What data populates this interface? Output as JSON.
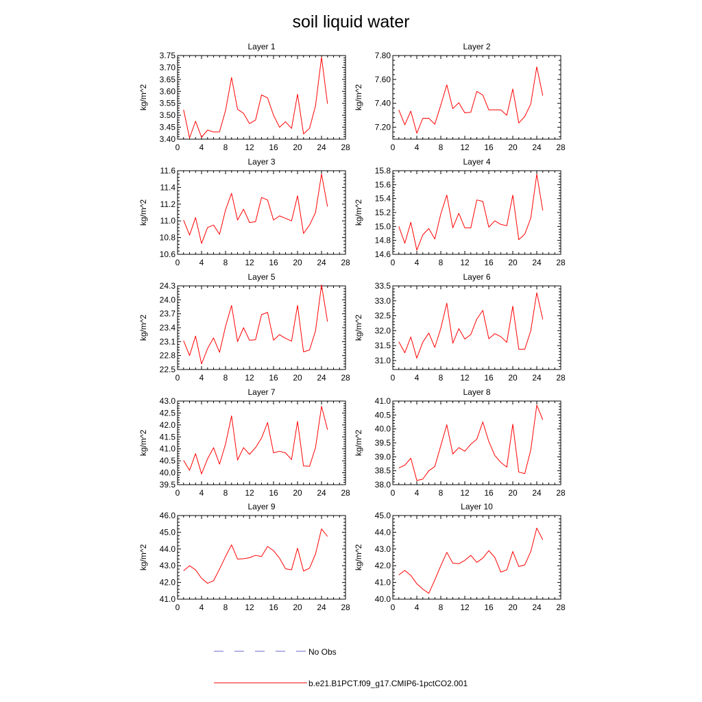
{
  "title": "soil liquid water",
  "legend": {
    "no_obs_label": "No Obs",
    "no_obs_color": "#6666cc",
    "model_label": "b.e21.B1PCT.f09_g17.CMIP6-1pctCO2.001",
    "model_color": "#ff0000"
  },
  "chart_data": [
    {
      "type": "line",
      "title": "Layer 1",
      "ylabel": "kg/m^2",
      "xlim": [
        0,
        28
      ],
      "xticks": [
        "0",
        "4",
        "8",
        "12",
        "16",
        "20",
        "24",
        "28"
      ],
      "ylim": [
        3.4,
        3.75
      ],
      "yticks": [
        "3.40",
        "3.45",
        "3.50",
        "3.55",
        "3.60",
        "3.65",
        "3.70",
        "3.75"
      ],
      "x": [
        1,
        2,
        3,
        4,
        5,
        6,
        7,
        8,
        9,
        10,
        11,
        12,
        13,
        14,
        15,
        16,
        17,
        18,
        19,
        20,
        21,
        22,
        23,
        24,
        25
      ],
      "series": [
        {
          "name": "b.e21.B1PCT.f09_g17.CMIP6-1pctCO2.001",
          "values": [
            3.523,
            3.405,
            3.475,
            3.408,
            3.438,
            3.43,
            3.431,
            3.52,
            3.658,
            3.525,
            3.508,
            3.465,
            3.48,
            3.585,
            3.573,
            3.5,
            3.45,
            3.473,
            3.445,
            3.588,
            3.422,
            3.445,
            3.54,
            3.743,
            3.548
          ]
        }
      ]
    },
    {
      "type": "line",
      "title": "Layer 2",
      "ylabel": "kg/m^2",
      "xlim": [
        0,
        28
      ],
      "xticks": [
        "0",
        "4",
        "8",
        "12",
        "16",
        "20",
        "24",
        "28"
      ],
      "ylim": [
        7.1,
        7.8
      ],
      "yticks": [
        "7.20",
        "7.40",
        "7.60",
        "7.80"
      ],
      "x": [
        1,
        2,
        3,
        4,
        5,
        6,
        7,
        8,
        9,
        10,
        11,
        12,
        13,
        14,
        15,
        16,
        17,
        18,
        19,
        20,
        21,
        22,
        23,
        24,
        25
      ],
      "series": [
        {
          "name": "b.e21.B1PCT.f09_g17.CMIP6-1pctCO2.001",
          "values": [
            7.345,
            7.22,
            7.335,
            7.15,
            7.275,
            7.275,
            7.225,
            7.385,
            7.555,
            7.355,
            7.405,
            7.32,
            7.325,
            7.5,
            7.47,
            7.345,
            7.345,
            7.345,
            7.3,
            7.52,
            7.235,
            7.29,
            7.395,
            7.705,
            7.465
          ]
        }
      ]
    },
    {
      "type": "line",
      "title": "Layer 3",
      "ylabel": "kg/m^2",
      "xlim": [
        0,
        28
      ],
      "xticks": [
        "0",
        "4",
        "8",
        "12",
        "16",
        "20",
        "24",
        "28"
      ],
      "ylim": [
        10.6,
        11.6
      ],
      "yticks": [
        "10.6",
        "10.8",
        "11.0",
        "11.2",
        "11.4",
        "11.6"
      ],
      "x": [
        1,
        2,
        3,
        4,
        5,
        6,
        7,
        8,
        9,
        10,
        11,
        12,
        13,
        14,
        15,
        16,
        17,
        18,
        19,
        20,
        21,
        22,
        23,
        24,
        25
      ],
      "series": [
        {
          "name": "b.e21.B1PCT.f09_g17.CMIP6-1pctCO2.001",
          "values": [
            11.01,
            10.83,
            11.04,
            10.73,
            10.92,
            10.95,
            10.84,
            11.13,
            11.33,
            11.01,
            11.14,
            10.98,
            10.99,
            11.28,
            11.25,
            11.01,
            11.06,
            11.03,
            11.0,
            11.3,
            10.85,
            10.95,
            11.1,
            11.56,
            11.17
          ]
        }
      ]
    },
    {
      "type": "line",
      "title": "Layer 4",
      "ylabel": "kg/m^2",
      "xlim": [
        0,
        28
      ],
      "xticks": [
        "0",
        "4",
        "8",
        "12",
        "16",
        "20",
        "24",
        "28"
      ],
      "ylim": [
        14.6,
        15.8
      ],
      "yticks": [
        "14.6",
        "14.8",
        "15.0",
        "15.2",
        "15.4",
        "15.6",
        "15.8"
      ],
      "x": [
        1,
        2,
        3,
        4,
        5,
        6,
        7,
        8,
        9,
        10,
        11,
        12,
        13,
        14,
        15,
        16,
        17,
        18,
        19,
        20,
        21,
        22,
        23,
        24,
        25
      ],
      "series": [
        {
          "name": "b.e21.B1PCT.f09_g17.CMIP6-1pctCO2.001",
          "values": [
            15.0,
            14.76,
            15.06,
            14.66,
            14.88,
            14.97,
            14.82,
            15.18,
            15.45,
            14.98,
            15.19,
            14.98,
            14.98,
            15.38,
            15.36,
            14.99,
            15.08,
            15.03,
            15.01,
            15.45,
            14.81,
            14.89,
            15.12,
            15.75,
            15.23
          ]
        }
      ]
    },
    {
      "type": "line",
      "title": "Layer 5",
      "ylabel": "kg/m^2",
      "xlim": [
        0,
        28
      ],
      "xticks": [
        "0",
        "4",
        "8",
        "12",
        "16",
        "20",
        "24",
        "28"
      ],
      "ylim": [
        22.5,
        24.3
      ],
      "yticks": [
        "22.5",
        "22.8",
        "23.1",
        "23.4",
        "23.7",
        "24.0",
        "24.3"
      ],
      "x": [
        1,
        2,
        3,
        4,
        5,
        6,
        7,
        8,
        9,
        10,
        11,
        12,
        13,
        14,
        15,
        16,
        17,
        18,
        19,
        20,
        21,
        22,
        23,
        24,
        25
      ],
      "series": [
        {
          "name": "b.e21.B1PCT.f09_g17.CMIP6-1pctCO2.001",
          "values": [
            23.12,
            22.8,
            23.22,
            22.62,
            22.95,
            23.18,
            22.87,
            23.43,
            23.88,
            23.1,
            23.4,
            23.13,
            23.14,
            23.68,
            23.73,
            23.13,
            23.25,
            23.17,
            23.11,
            23.88,
            22.88,
            22.92,
            23.33,
            24.32,
            23.53
          ]
        }
      ]
    },
    {
      "type": "line",
      "title": "Layer 6",
      "ylabel": "kg/m^2",
      "xlim": [
        0,
        28
      ],
      "xticks": [
        "0",
        "4",
        "8",
        "12",
        "16",
        "20",
        "24",
        "28"
      ],
      "ylim": [
        30.7,
        33.5
      ],
      "yticks": [
        "31.0",
        "31.5",
        "32.0",
        "32.5",
        "33.0",
        "33.5"
      ],
      "x": [
        1,
        2,
        3,
        4,
        5,
        6,
        7,
        8,
        9,
        10,
        11,
        12,
        13,
        14,
        15,
        16,
        17,
        18,
        19,
        20,
        21,
        22,
        23,
        24,
        25
      ],
      "series": [
        {
          "name": "b.e21.B1PCT.f09_g17.CMIP6-1pctCO2.001",
          "values": [
            31.63,
            31.26,
            31.79,
            31.08,
            31.62,
            31.92,
            31.44,
            32.08,
            32.92,
            31.58,
            32.07,
            31.72,
            31.87,
            32.39,
            32.68,
            31.73,
            31.9,
            31.8,
            31.61,
            32.82,
            31.38,
            31.38,
            32.0,
            33.27,
            32.38
          ]
        }
      ]
    },
    {
      "type": "line",
      "title": "Layer 7",
      "ylabel": "kg/m^2",
      "xlim": [
        0,
        28
      ],
      "xticks": [
        "0",
        "4",
        "8",
        "12",
        "16",
        "20",
        "24",
        "28"
      ],
      "ylim": [
        39.5,
        43.0
      ],
      "yticks": [
        "39.5",
        "40.0",
        "40.5",
        "41.0",
        "41.5",
        "42.0",
        "42.5",
        "43.0"
      ],
      "x": [
        1,
        2,
        3,
        4,
        5,
        6,
        7,
        8,
        9,
        10,
        11,
        12,
        13,
        14,
        15,
        16,
        17,
        18,
        19,
        20,
        21,
        22,
        23,
        24,
        25
      ],
      "series": [
        {
          "name": "b.e21.B1PCT.f09_g17.CMIP6-1pctCO2.001",
          "values": [
            40.52,
            40.1,
            40.8,
            39.95,
            40.58,
            41.05,
            40.36,
            41.2,
            42.38,
            40.53,
            41.05,
            40.77,
            41.05,
            41.45,
            42.1,
            40.83,
            40.9,
            40.83,
            40.55,
            42.15,
            40.28,
            40.27,
            41.05,
            42.78,
            41.8
          ]
        }
      ]
    },
    {
      "type": "line",
      "title": "Layer 8",
      "ylabel": "kg/m^2",
      "xlim": [
        0,
        28
      ],
      "xticks": [
        "0",
        "4",
        "8",
        "12",
        "16",
        "20",
        "24",
        "28"
      ],
      "ylim": [
        38.0,
        41.0
      ],
      "yticks": [
        "38.0",
        "38.5",
        "39.0",
        "39.5",
        "40.0",
        "40.5",
        "41.0"
      ],
      "x": [
        1,
        2,
        3,
        4,
        5,
        6,
        7,
        8,
        9,
        10,
        11,
        12,
        13,
        14,
        15,
        16,
        17,
        18,
        19,
        20,
        21,
        22,
        23,
        24,
        25
      ],
      "series": [
        {
          "name": "b.e21.B1PCT.f09_g17.CMIP6-1pctCO2.001",
          "values": [
            38.6,
            38.7,
            38.95,
            38.15,
            38.2,
            38.5,
            38.65,
            39.4,
            40.15,
            39.1,
            39.33,
            39.2,
            39.45,
            39.63,
            40.25,
            39.55,
            39.05,
            38.8,
            38.63,
            40.17,
            38.45,
            38.4,
            39.25,
            40.85,
            40.33
          ]
        }
      ]
    },
    {
      "type": "line",
      "title": "Layer 9",
      "ylabel": "kg/m^2",
      "xlim": [
        0,
        28
      ],
      "xticks": [
        "0",
        "4",
        "8",
        "12",
        "16",
        "20",
        "24",
        "28"
      ],
      "ylim": [
        41.0,
        46.0
      ],
      "yticks": [
        "41.0",
        "42.0",
        "43.0",
        "44.0",
        "45.0",
        "46.0"
      ],
      "x": [
        1,
        2,
        3,
        4,
        5,
        6,
        7,
        8,
        9,
        10,
        11,
        12,
        13,
        14,
        15,
        16,
        17,
        18,
        19,
        20,
        21,
        22,
        23,
        24,
        25
      ],
      "series": [
        {
          "name": "b.e21.B1PCT.f09_g17.CMIP6-1pctCO2.001",
          "values": [
            42.7,
            43.0,
            42.75,
            42.25,
            41.95,
            42.1,
            42.8,
            43.55,
            44.25,
            43.4,
            43.42,
            43.48,
            43.62,
            43.55,
            44.15,
            43.9,
            43.45,
            42.82,
            42.75,
            44.05,
            42.68,
            42.85,
            43.7,
            45.2,
            44.75
          ]
        }
      ]
    },
    {
      "type": "line",
      "title": "Layer 10",
      "ylabel": "kg/m^2",
      "xlim": [
        0,
        28
      ],
      "xticks": [
        "0",
        "4",
        "8",
        "12",
        "16",
        "20",
        "24",
        "28"
      ],
      "ylim": [
        40.0,
        45.0
      ],
      "yticks": [
        "40.0",
        "41.0",
        "42.0",
        "43.0",
        "44.0",
        "45.0"
      ],
      "x": [
        1,
        2,
        3,
        4,
        5,
        6,
        7,
        8,
        9,
        10,
        11,
        12,
        13,
        14,
        15,
        16,
        17,
        18,
        19,
        20,
        21,
        22,
        23,
        24,
        25
      ],
      "series": [
        {
          "name": "b.e21.B1PCT.f09_g17.CMIP6-1pctCO2.001",
          "values": [
            41.45,
            41.72,
            41.42,
            40.92,
            40.6,
            40.35,
            41.15,
            42.0,
            42.8,
            42.15,
            42.12,
            42.32,
            42.62,
            42.2,
            42.45,
            42.9,
            42.5,
            41.62,
            41.75,
            42.85,
            41.95,
            42.05,
            42.85,
            44.25,
            43.55
          ]
        }
      ]
    }
  ]
}
